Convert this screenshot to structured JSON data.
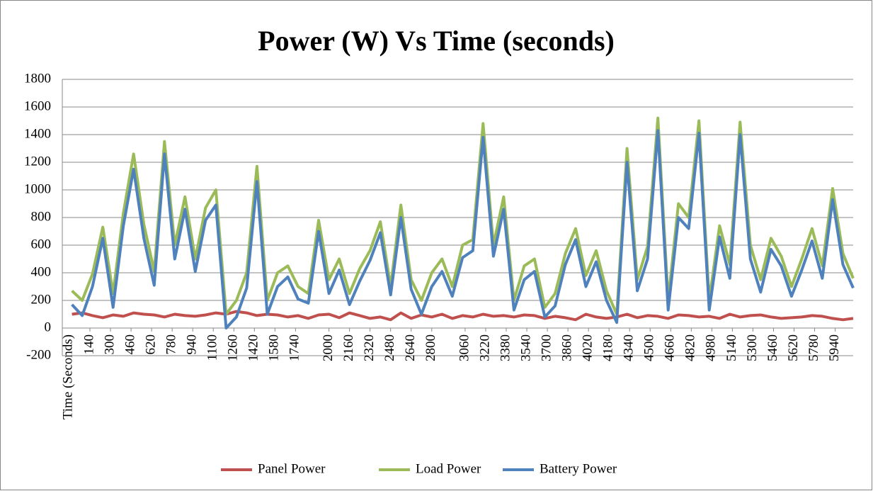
{
  "chart_data": {
    "type": "line",
    "title": "Power (W) Vs Time (seconds)",
    "x_label": "Time (Seconds)",
    "x": [
      0,
      80,
      160,
      240,
      320,
      400,
      480,
      560,
      640,
      720,
      800,
      880,
      960,
      1040,
      1120,
      1200,
      1280,
      1360,
      1440,
      1520,
      1600,
      1680,
      1760,
      1840,
      1920,
      2000,
      2080,
      2160,
      2240,
      2320,
      2400,
      2480,
      2560,
      2640,
      2720,
      2800,
      2880,
      2960,
      3040,
      3120,
      3200,
      3280,
      3360,
      3440,
      3520,
      3600,
      3680,
      3760,
      3840,
      3920,
      4000,
      4080,
      4160,
      4240,
      4320,
      4400,
      4480,
      4560,
      4640,
      4720,
      4800,
      4880,
      4960,
      5040,
      5120,
      5200,
      5280,
      5360,
      5440,
      5520,
      5600,
      5680,
      5760,
      5840,
      5920,
      6000,
      6080
    ],
    "series": [
      {
        "name": "Panel Power",
        "color": "#c0504d",
        "values": [
          100,
          110,
          90,
          75,
          95,
          85,
          110,
          100,
          95,
          80,
          100,
          90,
          85,
          95,
          110,
          100,
          120,
          110,
          90,
          100,
          95,
          80,
          90,
          70,
          95,
          100,
          75,
          110,
          90,
          70,
          80,
          60,
          110,
          70,
          95,
          80,
          100,
          70,
          90,
          80,
          100,
          85,
          90,
          80,
          95,
          90,
          70,
          85,
          75,
          60,
          100,
          80,
          70,
          80,
          100,
          75,
          90,
          85,
          70,
          95,
          90,
          80,
          85,
          70,
          100,
          80,
          90,
          95,
          80,
          70,
          75,
          80,
          90,
          85,
          70,
          60,
          70
        ]
      },
      {
        "name": "Load Power",
        "color": "#9bbb59",
        "values": [
          270,
          200,
          390,
          730,
          250,
          830,
          1260,
          750,
          410,
          1350,
          600,
          950,
          500,
          870,
          1000,
          100,
          200,
          400,
          1170,
          200,
          400,
          450,
          300,
          250,
          780,
          350,
          500,
          250,
          430,
          560,
          770,
          300,
          890,
          350,
          200,
          400,
          500,
          300,
          600,
          640,
          1480,
          600,
          950,
          200,
          450,
          500,
          150,
          250,
          540,
          720,
          380,
          560,
          270,
          100,
          1300,
          350,
          590,
          1520,
          200,
          900,
          800,
          1500,
          200,
          740,
          460,
          1490,
          600,
          350,
          650,
          520,
          300,
          500,
          720,
          450,
          1010,
          540,
          360
        ]
      },
      {
        "name": "Battery Power",
        "color": "#4f81bd",
        "values": [
          170,
          90,
          300,
          650,
          150,
          740,
          1150,
          650,
          310,
          1260,
          500,
          860,
          410,
          780,
          890,
          0,
          80,
          290,
          1060,
          100,
          300,
          370,
          210,
          180,
          700,
          250,
          420,
          170,
          340,
          490,
          690,
          240,
          800,
          280,
          100,
          300,
          410,
          230,
          510,
          560,
          1380,
          520,
          860,
          130,
          350,
          410,
          80,
          160,
          460,
          640,
          300,
          480,
          200,
          40,
          1200,
          270,
          500,
          1430,
          130,
          800,
          720,
          1410,
          130,
          660,
          360,
          1400,
          500,
          260,
          570,
          450,
          230,
          420,
          630,
          360,
          930,
          460,
          290
        ]
      }
    ],
    "xlim": [
      -75,
      6080
    ],
    "xticks": [
      140,
      300,
      460,
      620,
      780,
      940,
      1100,
      1260,
      1420,
      1580,
      1740,
      2000,
      2160,
      2320,
      2480,
      2640,
      2800,
      3060,
      3220,
      3380,
      3540,
      3700,
      3860,
      4020,
      4180,
      4340,
      4500,
      4660,
      4820,
      4980,
      5140,
      5300,
      5460,
      5620,
      5780,
      5940
    ],
    "ylim": [
      -200,
      1800
    ],
    "yticks": [
      -200,
      0,
      200,
      400,
      600,
      800,
      1000,
      1200,
      1400,
      1600,
      1800
    ],
    "grid": true,
    "legend": "bottom"
  }
}
